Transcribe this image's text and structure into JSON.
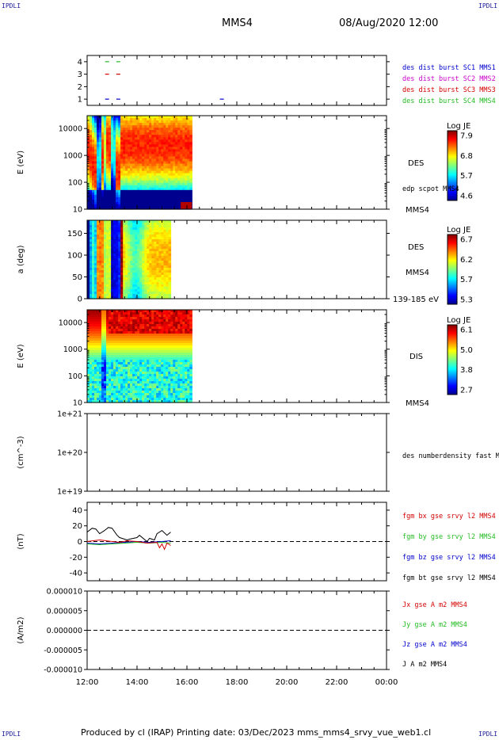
{
  "corner_tl": "IPDLI",
  "corner_tr": "IPDLI",
  "corner_bl": "IPDLI",
  "corner_br": "IPDLI",
  "header": {
    "spacecraft": "MMS4",
    "datetime": "08/Aug/2020 12:00"
  },
  "footer": "Produced by cl (IRAP)   Printing date: 03/Dec/2023   mms_mms4_srvy_vue_web1.cl",
  "colors": {
    "red": "#d40000",
    "green": "#22bb22",
    "blue": "#0000cc",
    "magenta": "#cc00cc",
    "black": "#000000"
  },
  "chart_data": [
    {
      "type": "scatter",
      "ylim": [
        0.5,
        4.5
      ],
      "yticks": [
        "1",
        "2",
        "3",
        "4"
      ],
      "legend": [
        "des dist burst SC1 MMS1",
        "des dist burst SC2 MMS2",
        "des dist burst SC3 MMS3",
        "des dist burst SC4 MMS4"
      ],
      "marks": [
        {
          "level": 4,
          "color": "green",
          "t": [
            12.8,
            13.25
          ]
        },
        {
          "level": 3,
          "color": "red",
          "t": [
            12.8,
            13.25
          ]
        },
        {
          "level": 1,
          "color": "blue",
          "t": [
            12.8,
            13.25,
            17.4
          ]
        }
      ]
    },
    {
      "type": "heatmap",
      "ylabel": "E (eV)",
      "yscale": "log",
      "ylim": [
        10,
        30000
      ],
      "yticks": [
        "10",
        "100",
        "1000",
        "10000"
      ],
      "xrange_data": [
        12.0,
        16.2
      ],
      "label": "DES",
      "sublabel": "edp scpot MMS4",
      "sublabel2": "MMS4",
      "colorbar": {
        "title": "Log JE",
        "min": 4.6,
        "max": 7.9,
        "ticks": [
          "7.9",
          "6.8",
          "5.7",
          "4.6"
        ]
      }
    },
    {
      "type": "heatmap",
      "ylabel": "a (deg)",
      "ylim": [
        0,
        180
      ],
      "yticks": [
        "0",
        "50",
        "100",
        "150"
      ],
      "xrange_data": [
        12.0,
        15.35
      ],
      "label": "DES",
      "sublabel": "MMS4",
      "sublabel2": "139-185 eV",
      "colorbar": {
        "title": "Log JE",
        "min": 5.3,
        "max": 6.7,
        "ticks": [
          "6.7",
          "6.2",
          "5.7",
          "5.3"
        ]
      }
    },
    {
      "type": "heatmap",
      "ylabel": "E (eV)",
      "yscale": "log",
      "ylim": [
        10,
        30000
      ],
      "yticks": [
        "10",
        "100",
        "1000",
        "10000"
      ],
      "xrange_data": [
        12.0,
        16.2
      ],
      "label": "DIS",
      "sublabel": "MMS4",
      "colorbar": {
        "title": "Log JE",
        "min": 2.7,
        "max": 6.1,
        "ticks": [
          "6.1",
          "5.0",
          "3.8",
          "2.7"
        ]
      }
    },
    {
      "type": "line",
      "ylabel": "(cm^-3)",
      "yscale": "log",
      "yticks": [
        "1e+19",
        "1e+20",
        "1e+21"
      ],
      "legend": [
        "des numberdensity fast M"
      ]
    },
    {
      "type": "line",
      "ylabel": "(nT)",
      "ylim": [
        -50,
        50
      ],
      "yticks": [
        "-40",
        "-20",
        "0",
        "20",
        "40"
      ],
      "legend": [
        "fgm bx gse srvy l2 MMS4",
        "fgm by gse srvy l2 MMS4",
        "fgm bz gse srvy l2 MMS4",
        "fgm bt gse srvy l2 MMS4"
      ],
      "series": [
        {
          "color": "black",
          "t": [
            12.0,
            12.2,
            12.35,
            12.5,
            12.7,
            12.85,
            13.0,
            13.2,
            13.3,
            13.6,
            13.7,
            14.0,
            14.1,
            14.4,
            14.5,
            14.7,
            14.8,
            15.0,
            15.2,
            15.35
          ],
          "values": [
            12,
            17,
            16,
            10,
            14,
            18,
            17,
            8,
            5,
            2,
            3,
            5,
            8,
            0,
            4,
            2,
            10,
            14,
            8,
            12
          ]
        },
        {
          "color": "red",
          "t": [
            12.0,
            12.5,
            13.0,
            13.3,
            13.6,
            14.0,
            14.4,
            14.8,
            14.9,
            15.0,
            15.1,
            15.2,
            15.35
          ],
          "values": [
            0,
            2,
            0,
            -1,
            1,
            0,
            -2,
            -1,
            -8,
            -3,
            -10,
            -2,
            -5
          ]
        },
        {
          "color": "green",
          "t": [
            12.0,
            12.5,
            13.0,
            13.5,
            14.0,
            14.5,
            15.0,
            15.35
          ],
          "values": [
            -3,
            -4,
            -3,
            -2,
            -1,
            -2,
            -1,
            -2
          ]
        },
        {
          "color": "blue",
          "t": [
            12.0,
            12.5,
            13.0,
            13.5,
            14.0,
            14.5,
            15.0,
            15.35
          ],
          "values": [
            -2,
            -3,
            -2,
            -1,
            0,
            -1,
            0,
            1
          ]
        }
      ]
    },
    {
      "type": "line",
      "ylabel": "(A/m2)",
      "ylim": [
        -1e-05,
        1e-05
      ],
      "yticks": [
        "0.000010",
        "0.000005",
        "0.000000",
        "-0.000005",
        "-0.000010"
      ],
      "legend": [
        "Jx gse A m2 MMS4",
        "Jy gse A m2 MMS4",
        "Jz gse A m2 MMS4",
        "J A m2 MMS4"
      ],
      "xticks": [
        "12:00",
        "14:00",
        "16:00",
        "18:00",
        "20:00",
        "22:00",
        "00:00"
      ],
      "xlim": [
        12,
        24
      ]
    }
  ]
}
